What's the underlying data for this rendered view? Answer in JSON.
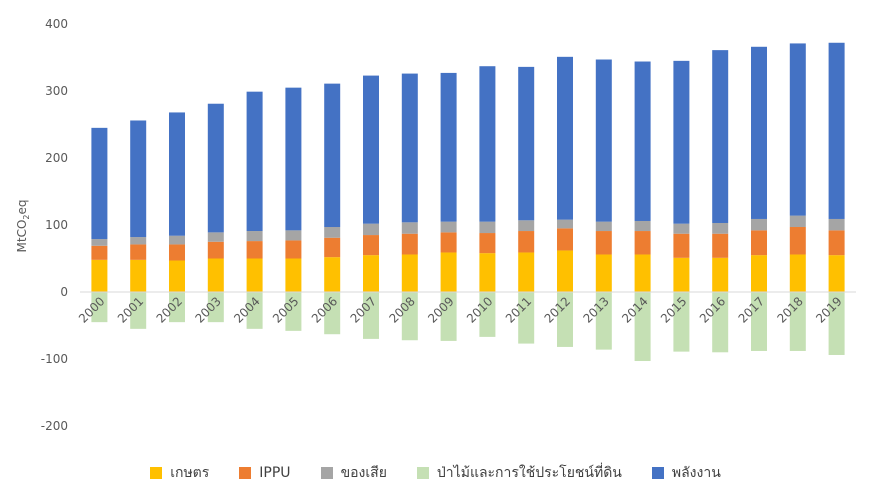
{
  "chart_data": {
    "type": "bar",
    "stacked": true,
    "ylabel": "MtCO2eq",
    "ylim": [
      -200,
      400
    ],
    "yticks": [
      400,
      300,
      200,
      100,
      0,
      -100,
      -200
    ],
    "grid": false,
    "legend_position": "bottom",
    "categories": [
      "2000",
      "2001",
      "2002",
      "2003",
      "2004",
      "2005",
      "2006",
      "2007",
      "2008",
      "2009",
      "2010",
      "2011",
      "2012",
      "2013",
      "2014",
      "2015",
      "2016",
      "2017",
      "2018",
      "2019"
    ],
    "series": [
      {
        "name": "เกษตร",
        "color": "#FFC000",
        "values": [
          48,
          48,
          47,
          50,
          50,
          50,
          52,
          55,
          56,
          59,
          58,
          59,
          62,
          56,
          56,
          51,
          51,
          55,
          56,
          55
        ]
      },
      {
        "name": "IPPU",
        "color": "#ED7D31",
        "values": [
          21,
          23,
          24,
          25,
          26,
          27,
          29,
          30,
          31,
          30,
          30,
          32,
          33,
          35,
          35,
          36,
          36,
          37,
          41,
          37
        ]
      },
      {
        "name": "ของเสีย",
        "color": "#A5A5A5",
        "values": [
          10,
          11,
          13,
          14,
          15,
          15,
          16,
          17,
          17,
          16,
          17,
          16,
          13,
          14,
          15,
          15,
          16,
          17,
          17,
          17
        ]
      },
      {
        "name": "ป่าไม้และการใช้ประโยชน์ที่ดิน",
        "color": "#C5E0B4",
        "values": [
          -45,
          -55,
          -45,
          -45,
          -55,
          -58,
          -63,
          -70,
          -72,
          -73,
          -67,
          -77,
          -82,
          -86,
          -103,
          -89,
          -90,
          -88,
          -88,
          -94
        ]
      },
      {
        "name": "พลังงาน",
        "color": "#4472C4",
        "values": [
          166,
          174,
          184,
          192,
          208,
          213,
          214,
          221,
          222,
          222,
          232,
          229,
          243,
          242,
          238,
          243,
          258,
          257,
          257,
          263
        ]
      }
    ]
  }
}
